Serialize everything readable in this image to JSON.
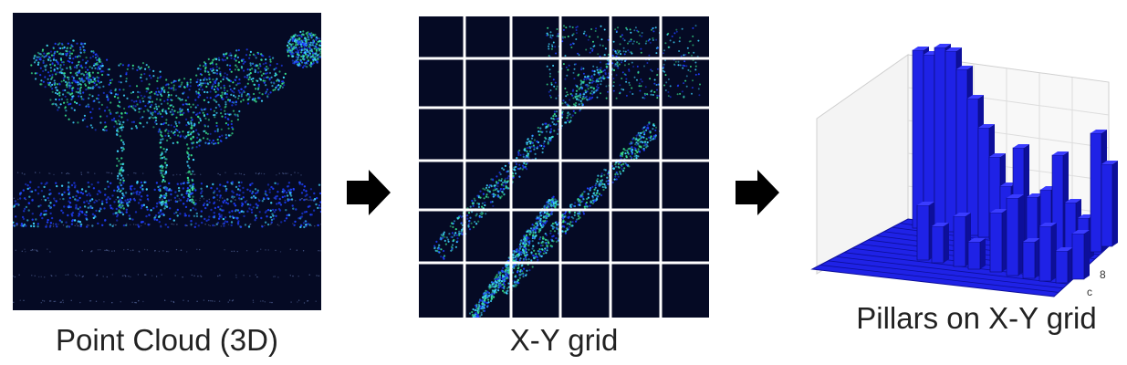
{
  "panels": [
    {
      "caption": "Point Cloud (3D)"
    },
    {
      "caption": "X-Y grid"
    },
    {
      "caption": "Pillars on X-Y grid"
    }
  ],
  "arrows": [
    {
      "icon": "right-arrow-icon"
    },
    {
      "icon": "right-arrow-icon"
    }
  ],
  "pillar_chart": {
    "tick_labels": [
      "8",
      "c"
    ]
  },
  "colors": {
    "background_dark": "#050a24",
    "points_blue": "#1f3fff",
    "points_cyan": "#3fd6ff",
    "points_green": "#37e08a",
    "grid_line": "#ffffff",
    "pillar_face": "#1f22e6",
    "pillar_top": "#3a3cff",
    "pillar_side": "#0d0f9a",
    "arrow": "#000000"
  }
}
